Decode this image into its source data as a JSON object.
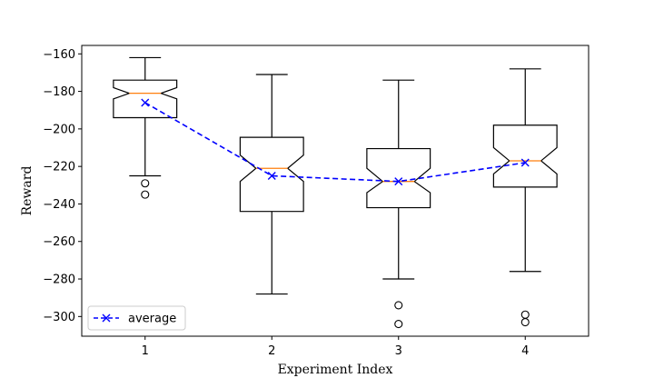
{
  "chart_data": {
    "type": "box",
    "title": "",
    "xlabel": "Experiment Index",
    "ylabel": "Reward",
    "categories": [
      "1",
      "2",
      "3",
      "4"
    ],
    "x_ticks": [
      1,
      2,
      3,
      4
    ],
    "xlim": [
      0.5,
      4.5
    ],
    "ylim": [
      -310.5,
      -155.5
    ],
    "y_ticks": [
      -160,
      -180,
      -200,
      -220,
      -240,
      -260,
      -280,
      -300
    ],
    "y_tick_labels": [
      "−160",
      "−180",
      "−200",
      "−220",
      "−240",
      "−260",
      "−280",
      "−300"
    ],
    "notched": true,
    "boxes": [
      {
        "label": "1",
        "whisker_low": -225,
        "q1": -194,
        "median": -181,
        "q3": -174,
        "whisker_high": -162,
        "notch_low": -184,
        "notch_high": -178,
        "outliers": [
          -229,
          -235
        ]
      },
      {
        "label": "2",
        "whisker_low": -288,
        "q1": -244,
        "median": -221,
        "q3": -204.5,
        "whisker_high": -171,
        "notch_low": -228,
        "notch_high": -214,
        "outliers": []
      },
      {
        "label": "3",
        "whisker_low": -280,
        "q1": -242,
        "median": -228,
        "q3": -210.5,
        "whisker_high": -174,
        "notch_low": -234,
        "notch_high": -221,
        "outliers": [
          -294,
          -304
        ]
      },
      {
        "label": "4",
        "whisker_low": -276,
        "q1": -231,
        "median": -217,
        "q3": -198,
        "whisker_high": -168,
        "notch_low": -224,
        "notch_high": -210,
        "outliers": [
          -299,
          -303
        ]
      }
    ],
    "series": [
      {
        "name": "average",
        "values": [
          -186,
          -225,
          -228,
          -218
        ],
        "color": "#0000ff",
        "line_style": "dashed",
        "marker": "x"
      }
    ],
    "legend": {
      "position": "lower-left",
      "entries": [
        "average"
      ]
    },
    "colors": {
      "box": "#000000",
      "median": "#ff7f0e",
      "average": "#0000ff"
    },
    "grid": false
  }
}
